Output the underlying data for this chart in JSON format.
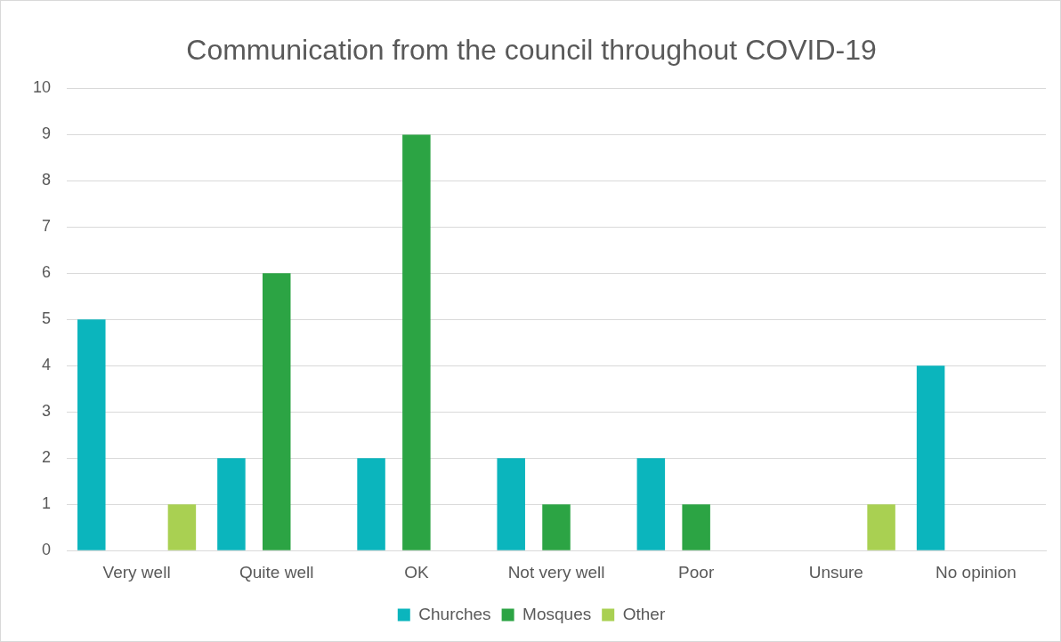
{
  "chart_data": {
    "type": "bar",
    "title": "Communication from the council throughout COVID-19",
    "categories": [
      "Very well",
      "Quite well",
      "OK",
      "Not very well",
      "Poor",
      "Unsure",
      "No opinion"
    ],
    "series": [
      {
        "name": "Churches",
        "color": "#0bb5bd",
        "values": [
          5,
          2,
          2,
          2,
          2,
          0,
          4
        ]
      },
      {
        "name": "Mosques",
        "color": "#2ca444",
        "values": [
          0,
          6,
          9,
          1,
          1,
          0,
          0
        ]
      },
      {
        "name": "Other",
        "color": "#a9d052",
        "values": [
          1,
          0,
          0,
          0,
          0,
          1,
          0
        ]
      }
    ],
    "ylim": [
      0,
      10
    ],
    "yticks": [
      0,
      1,
      2,
      3,
      4,
      5,
      6,
      7,
      8,
      9,
      10
    ],
    "grid": "y",
    "legend": "bottom"
  }
}
